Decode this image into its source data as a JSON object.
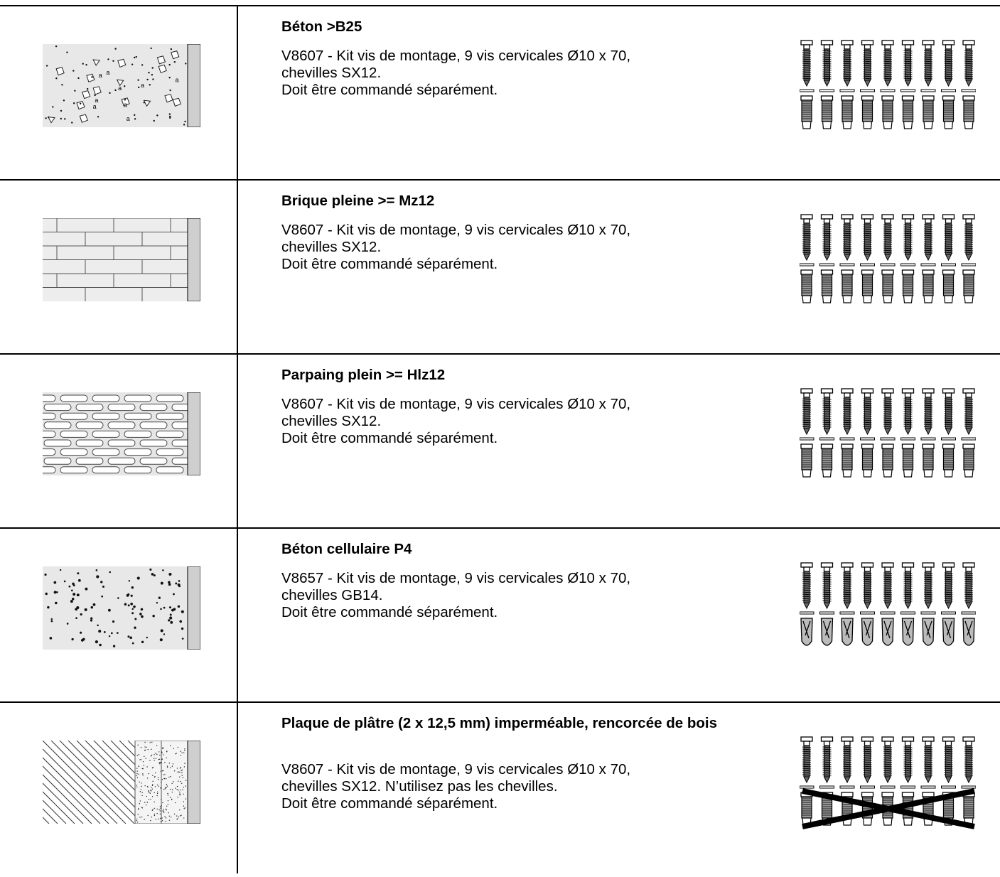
{
  "rows": [
    {
      "material": "concrete-texture",
      "kit_type": "sx",
      "crossed": false,
      "title": "Béton >B25",
      "line1": "V8607 - Kit vis de montage, 9 vis cervicales Ø10 x 70,",
      "line2": "chevilles SX12.",
      "line3": "Doit être commandé séparément."
    },
    {
      "material": "brick-texture",
      "kit_type": "sx",
      "crossed": false,
      "title": "Brique pleine >= Mz12",
      "line1": "V8607 - Kit vis de montage, 9 vis cervicales Ø10 x 70,",
      "line2": "chevilles SX12.",
      "line3": "Doit être commandé séparément."
    },
    {
      "material": "block-texture",
      "kit_type": "sx",
      "crossed": false,
      "title": "Parpaing plein >= Hlz12",
      "line1": "V8607 - Kit vis de montage, 9 vis cervicales Ø10 x 70,",
      "line2": "chevilles SX12.",
      "line3": "Doit être commandé séparément."
    },
    {
      "material": "aerated-concrete-texture",
      "kit_type": "gb",
      "crossed": false,
      "title": "Béton cellulaire P4",
      "line1": "V8657 - Kit vis de montage, 9 vis cervicales Ø10 x 70,",
      "line2": "chevilles GB14.",
      "line3": "Doit être commandé séparément."
    },
    {
      "material": "plasterboard-wood-texture",
      "kit_type": "sx",
      "crossed": true,
      "title": "Plaque de plâtre (2 x 12,5 mm) imperméable, rencorcée de bois",
      "line1": "V8607 - Kit vis de montage, 9 vis cervicales Ø10 x 70,",
      "line2": "chevilles SX12. N’utilisez pas les chevilles.",
      "line3": "Doit être commandé séparément."
    }
  ]
}
